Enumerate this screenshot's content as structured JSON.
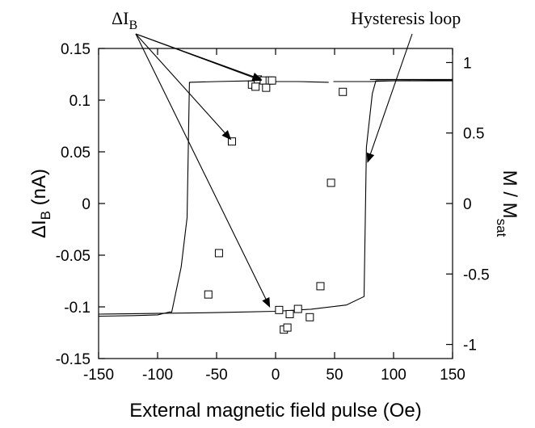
{
  "chart_data": {
    "type": "scatter",
    "xlabel": "External magnetic field pulse (Oe)",
    "ylabel": {
      "prefix": "ΔI",
      "sub": "B",
      "suffix": " (nA)"
    },
    "y2label": {
      "main": "M / M",
      "sub": "sat"
    },
    "xlim": [
      -150,
      150
    ],
    "ylim": [
      -0.15,
      0.15
    ],
    "y2lim": [
      -1.1,
      1.1
    ],
    "xticks": [
      -150,
      -100,
      -50,
      0,
      50,
      100,
      150
    ],
    "yticks": [
      -0.15,
      -0.1,
      -0.05,
      0,
      0.05,
      0.1,
      0.15
    ],
    "y2ticks": [
      -1,
      -0.5,
      0,
      0.5,
      1
    ],
    "xtick_labels": [
      "-150",
      "-100",
      "-50",
      "0",
      "50",
      "100",
      "150"
    ],
    "ytick_labels": [
      "-0.15",
      "-0.1",
      "-0.05",
      "0",
      "0.05",
      "0.1",
      "0.15"
    ],
    "y2tick_labels": [
      "-1",
      "-0.5",
      "0",
      "0.5",
      "1"
    ],
    "grid": false,
    "series": [
      {
        "marker": "open-square",
        "axis": "left",
        "x": [
          -20,
          -15,
          -10,
          -5,
          -17,
          -8,
          -3,
          57,
          -37,
          47,
          -48,
          -57,
          3,
          12,
          19,
          29,
          38,
          7,
          10
        ],
        "y": [
          0.115,
          0.12,
          0.119,
          0.119,
          0.113,
          0.112,
          0.119,
          0.108,
          0.06,
          0.02,
          -0.048,
          -0.088,
          -0.103,
          -0.107,
          -0.102,
          -0.11,
          -0.08,
          -0.122,
          -0.12
        ]
      },
      {
        "style": "line",
        "axis": "right",
        "x": [
          -150,
          -120,
          -100,
          -90,
          -88,
          -80,
          -75,
          -73,
          -50,
          -20,
          0,
          20,
          45
        ],
        "y": [
          -0.8,
          -0.795,
          -0.79,
          -0.77,
          -0.77,
          -0.45,
          -0.1,
          0.86,
          0.865,
          0.87,
          0.865,
          0.865,
          0.86
        ]
      },
      {
        "style": "line",
        "axis": "right",
        "x": [
          49,
          60,
          80,
          100,
          120,
          150
        ],
        "y": [
          0.865,
          0.865,
          0.865,
          0.87,
          0.87,
          0.87
        ]
      },
      {
        "style": "line",
        "axis": "right",
        "x": [
          80,
          100,
          120,
          150
        ],
        "y": [
          0.88,
          0.88,
          0.88,
          0.88
        ]
      },
      {
        "style": "line",
        "axis": "right",
        "x": [
          -150,
          -100,
          -60,
          -30,
          0,
          30,
          60,
          75,
          77,
          82,
          85,
          150
        ],
        "y": [
          -0.785,
          -0.78,
          -0.775,
          -0.77,
          -0.765,
          -0.75,
          -0.72,
          -0.66,
          0.4,
          0.78,
          0.87,
          0.875
        ]
      }
    ],
    "annotations": [
      {
        "text_prefix": "ΔI",
        "text_sub": "B",
        "arrows_to": [
          [
            -12,
            0.12
          ],
          [
            -38,
            0.062
          ],
          [
            -5,
            -0.1
          ],
          [
            -12,
            0.119
          ]
        ]
      },
      {
        "text": "Hysteresis loop",
        "arrow_to": [
          78,
          0.04
        ]
      }
    ]
  }
}
